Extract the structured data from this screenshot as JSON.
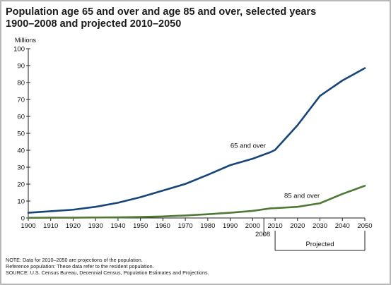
{
  "title": {
    "line1": "Population age 65 and over and age 85 and over, selected years",
    "line2": "1900–2008 and projected 2010–2050"
  },
  "chart_data": {
    "type": "line",
    "unit_label": "Millions",
    "x": [
      1900,
      1910,
      1920,
      1930,
      1940,
      1950,
      1960,
      1970,
      1980,
      1990,
      2000,
      2008,
      2010,
      2020,
      2030,
      2040,
      2050
    ],
    "x_tick_labels": [
      "1900",
      "1910",
      "1920",
      "1930",
      "1940",
      "1950",
      "1960",
      "1970",
      "1980",
      "1990",
      "2000",
      "2010",
      "2020",
      "2030",
      "2040",
      "2050"
    ],
    "x_tick_values": [
      1900,
      1910,
      1920,
      1930,
      1940,
      1950,
      1960,
      1970,
      1980,
      1990,
      2000,
      2010,
      2020,
      2030,
      2040,
      2050
    ],
    "x_extra_label": "2008",
    "y_ticks": [
      0,
      10,
      20,
      30,
      40,
      50,
      60,
      70,
      80,
      90,
      100
    ],
    "xlim": [
      1900,
      2050
    ],
    "ylim": [
      0,
      100
    ],
    "grid": false,
    "series": [
      {
        "name": "65 and over",
        "color": "#17457a",
        "values": [
          3.1,
          4.0,
          4.9,
          6.6,
          9.0,
          12.3,
          16.2,
          20.1,
          25.5,
          31.2,
          35.0,
          38.9,
          40.2,
          54.8,
          72.1,
          81.2,
          88.5
        ]
      },
      {
        "name": "85 and over",
        "color": "#4f7a35",
        "values": [
          0.1,
          0.2,
          0.2,
          0.3,
          0.4,
          0.6,
          0.9,
          1.5,
          2.2,
          3.1,
          4.2,
          5.7,
          5.8,
          6.6,
          8.7,
          14.2,
          19.0
        ]
      }
    ],
    "projected_label": "Projected",
    "projected_range": [
      2010,
      2050
    ]
  },
  "notes": {
    "line1": "NOTE: Data for 2010–2050 are projections of the population.",
    "line2": "Reference population: These data refer to the resident population.",
    "line3": "SOURCE: U.S. Census Bureau, Decennial Census, Population Estimates and Projections."
  }
}
